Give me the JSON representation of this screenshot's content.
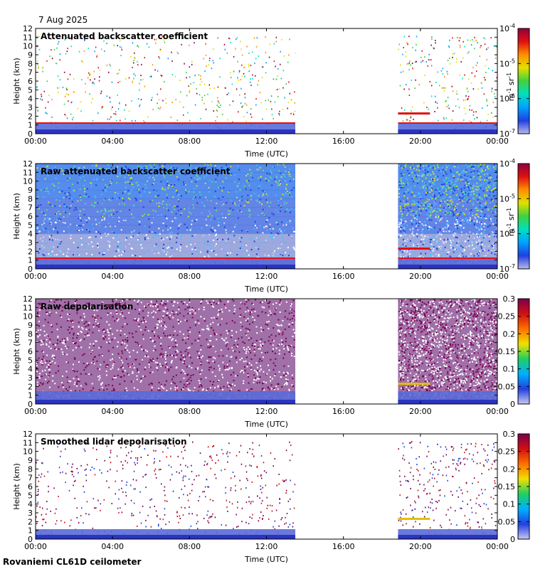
{
  "date": "7 Aug 2025",
  "footer": "Rovaniemi CL61D ceilometer",
  "colors": {
    "background": "#ffffff",
    "data_blue": "#3050e0",
    "surface_red": "#c81e1e",
    "depol_purple": "#8b0a5a"
  },
  "chart_data": [
    {
      "type": "heatmap",
      "title": "Attenuated backscatter coefficient",
      "xlabel": "Time (UTC)",
      "ylabel": "Height (km)",
      "x_ticks": [
        "00:00",
        "04:00",
        "08:00",
        "12:00",
        "16:00",
        "20:00",
        "00:00"
      ],
      "y_ticks": [
        "0",
        "1",
        "2",
        "3",
        "4",
        "5",
        "6",
        "7",
        "8",
        "9",
        "10",
        "11",
        "12"
      ],
      "ylim": [
        0,
        12
      ],
      "data_gaps": [
        [
          "13:30",
          "18:50"
        ]
      ],
      "colorbar": {
        "scale": "log",
        "range": [
          1e-07,
          0.0001
        ],
        "tick_labels": [
          [
            "10",
            "-4"
          ],
          [
            "10",
            "-5"
          ],
          [
            "10",
            "-6"
          ],
          [
            "10",
            "-7"
          ]
        ],
        "unit": [
          "m",
          "-1",
          " sr",
          "-1"
        ]
      }
    },
    {
      "type": "heatmap",
      "title": "Raw attenuated backscatter coefficient",
      "xlabel": "Time (UTC)",
      "ylabel": "Height (km)",
      "x_ticks": [
        "00:00",
        "04:00",
        "08:00",
        "12:00",
        "16:00",
        "20:00",
        "00:00"
      ],
      "y_ticks": [
        "0",
        "1",
        "2",
        "3",
        "4",
        "5",
        "6",
        "7",
        "8",
        "9",
        "10",
        "11",
        "12"
      ],
      "ylim": [
        0,
        12
      ],
      "data_gaps": [
        [
          "13:30",
          "18:50"
        ]
      ],
      "colorbar": {
        "scale": "log",
        "range": [
          1e-07,
          0.0001
        ],
        "tick_labels": [
          [
            "10",
            "-4"
          ],
          [
            "10",
            "-5"
          ],
          [
            "10",
            "-6"
          ],
          [
            "10",
            "-7"
          ]
        ],
        "unit": [
          "m",
          "-1",
          " sr",
          "-1"
        ]
      }
    },
    {
      "type": "heatmap",
      "title": "Raw depolarisation",
      "xlabel": "Time (UTC)",
      "ylabel": "Height (km)",
      "x_ticks": [
        "00:00",
        "04:00",
        "08:00",
        "12:00",
        "16:00",
        "20:00",
        "00:00"
      ],
      "y_ticks": [
        "0",
        "1",
        "2",
        "3",
        "4",
        "5",
        "6",
        "7",
        "8",
        "9",
        "10",
        "11",
        "12"
      ],
      "ylim": [
        0,
        12
      ],
      "data_gaps": [
        [
          "13:30",
          "18:50"
        ]
      ],
      "colorbar": {
        "scale": "linear",
        "range": [
          0,
          0.3
        ],
        "tick_labels": [
          "0.3",
          "0.25",
          "0.2",
          "0.15",
          "0.1",
          "0.05",
          "0"
        ]
      }
    },
    {
      "type": "heatmap",
      "title": "Smoothed lidar depolarisation",
      "xlabel": "Time (UTC)",
      "ylabel": "Height (km)",
      "x_ticks": [
        "00:00",
        "04:00",
        "08:00",
        "12:00",
        "16:00",
        "20:00",
        "00:00"
      ],
      "y_ticks": [
        "0",
        "1",
        "2",
        "3",
        "4",
        "5",
        "6",
        "7",
        "8",
        "9",
        "10",
        "11",
        "12"
      ],
      "ylim": [
        0,
        12
      ],
      "data_gaps": [
        [
          "13:30",
          "18:50"
        ]
      ],
      "colorbar": {
        "scale": "linear",
        "range": [
          0,
          0.3
        ],
        "tick_labels": [
          "0.3",
          "0.25",
          "0.2",
          "0.15",
          "0.1",
          "0.05",
          "0"
        ]
      }
    }
  ]
}
